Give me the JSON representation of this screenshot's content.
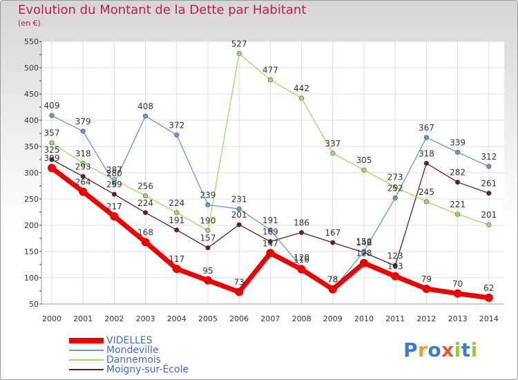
{
  "chart_data": {
    "type": "line",
    "title": "Evolution du Montant de la Dette par Habitant",
    "subtitle": "(en €)",
    "x": [
      "2000",
      "2001",
      "2002",
      "2003",
      "2004",
      "2005",
      "2006",
      "2007",
      "2008",
      "2009",
      "2010",
      "2011",
      "2012",
      "2013",
      "2014"
    ],
    "ylim": [
      50,
      550
    ],
    "yticks": [
      50,
      100,
      150,
      200,
      250,
      300,
      350,
      400,
      450,
      500,
      550
    ],
    "grid": true,
    "legend_position": "bottom-left",
    "series": [
      {
        "name": "VIDELLES",
        "color": "#ee0000",
        "values": [
          309,
          264,
          217,
          168,
          117,
          95,
          73,
          147,
          116,
          78,
          128,
          103,
          79,
          70,
          62
        ]
      },
      {
        "name": "Mondeville",
        "color": "#6699cc",
        "values": [
          409,
          379,
          280,
          408,
          372,
          239,
          231,
          191,
          120,
          78,
          150,
          252,
          367,
          339,
          312
        ]
      },
      {
        "name": "Dannemois",
        "color": "#99dd66",
        "values": [
          357,
          318,
          287,
          256,
          224,
          190,
          527,
          477,
          442,
          337,
          305,
          273,
          245,
          221,
          201
        ]
      },
      {
        "name": "Moigny-sur-École",
        "color": "#661c1c",
        "values": [
          325,
          293,
          259,
          224,
          191,
          157,
          201,
          169,
          186,
          167,
          148,
          123,
          318,
          282,
          261
        ]
      }
    ],
    "value_labels": [
      {
        "series": 0,
        "labels": [
          "309",
          "264",
          "217",
          "168",
          "117",
          "95",
          "73",
          "147",
          "116",
          "78",
          "128",
          "103",
          "79",
          "70",
          "62"
        ]
      },
      {
        "series": 1,
        "labels": [
          "409",
          "379",
          "280",
          "408",
          "372",
          "239",
          "231",
          "191",
          "120",
          "78",
          "150",
          "252",
          "367",
          "339",
          "312"
        ]
      },
      {
        "series": 2,
        "labels": [
          "357",
          "318",
          "287",
          "256",
          "224",
          "190",
          "527",
          "477",
          "442",
          "337",
          "305",
          "273",
          "245",
          "221",
          "201"
        ]
      },
      {
        "series": 3,
        "labels": [
          "325",
          "293",
          "259",
          "224",
          "191",
          "157",
          "201",
          "169",
          "186",
          "167",
          "148",
          "123",
          "318",
          "282",
          "261"
        ]
      }
    ]
  },
  "legend": [
    {
      "label": "VIDELLES"
    },
    {
      "label": "Mondeville"
    },
    {
      "label": "Dannemois"
    },
    {
      "label": "Moigny-sur-École"
    }
  ],
  "brand": {
    "letters": [
      "P",
      "r",
      "o",
      "x",
      "i",
      "t",
      "i"
    ],
    "colors": [
      "#3a7bd5",
      "#e8a02a",
      "#3a7bd5",
      "#e85a2a",
      "#9bc53d",
      "#3a7bd5",
      "#9bc53d"
    ]
  }
}
